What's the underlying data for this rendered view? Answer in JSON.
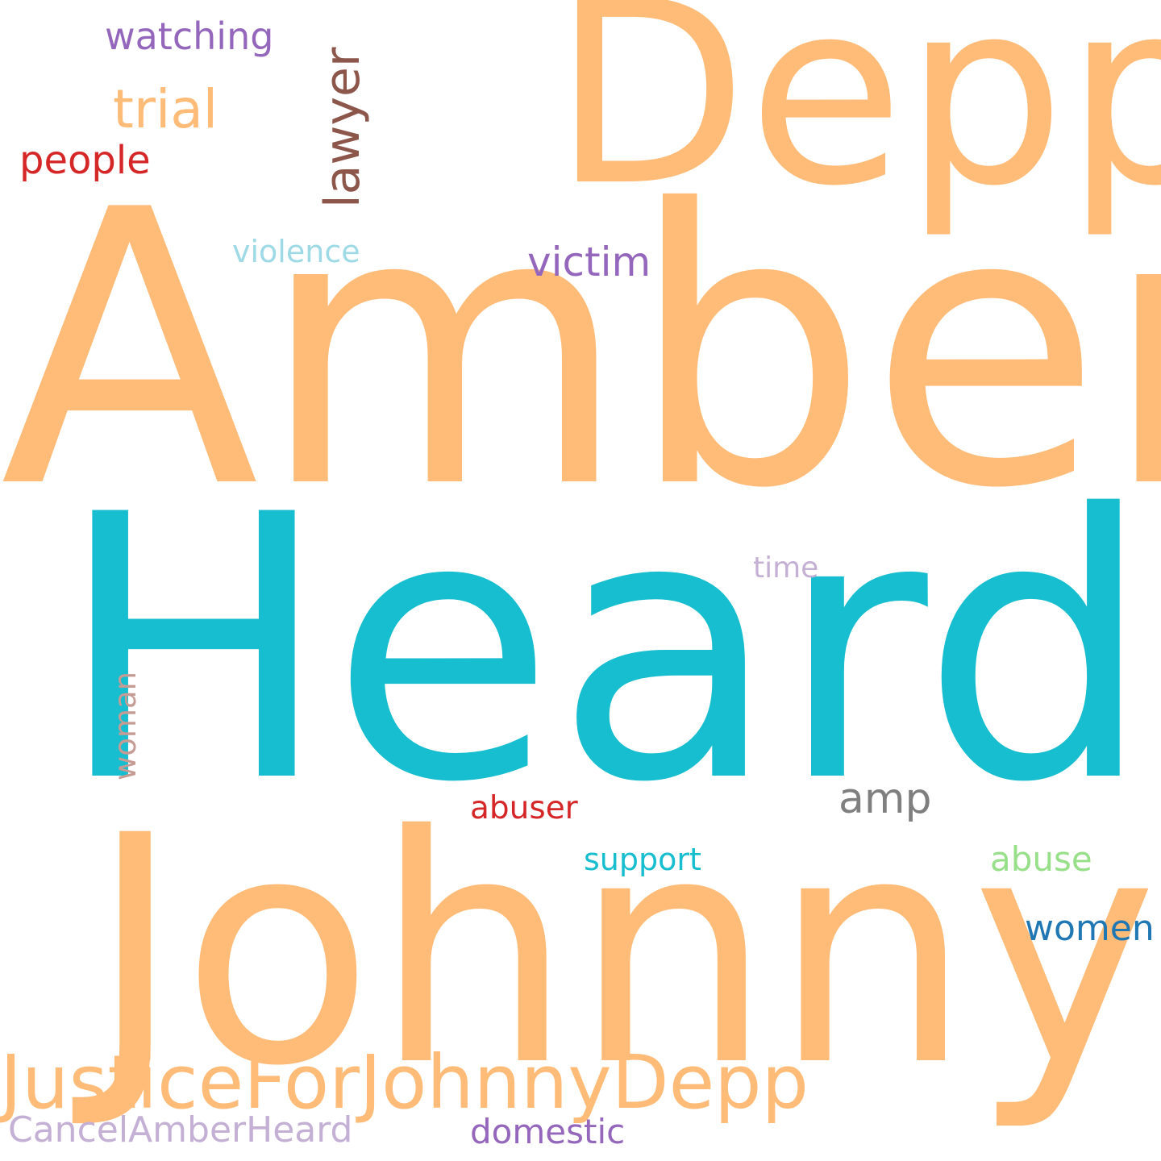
{
  "words": {
    "amber": {
      "text": "Amber",
      "color": "#ffbb78"
    },
    "heard": {
      "text": "Heard",
      "color": "#17becf"
    },
    "johnny": {
      "text": "Johnny",
      "color": "#ffbb78"
    },
    "depp": {
      "text": "Depp",
      "color": "#ffbb78"
    },
    "justice": {
      "text": "JusticeForJohnnyDepp",
      "color": "#ffbb78"
    },
    "cancel": {
      "text": "CancelAmberHeard",
      "color": "#c5b0d5"
    },
    "watching": {
      "text": "watching",
      "color": "#9467bd"
    },
    "trial": {
      "text": "trial",
      "color": "#ffbb78"
    },
    "people": {
      "text": "people",
      "color": "#d62728"
    },
    "lawyer": {
      "text": "lawyer",
      "color": "#8c564b"
    },
    "violence": {
      "text": "violence",
      "color": "#9edae5"
    },
    "victim": {
      "text": "victim",
      "color": "#9467bd"
    },
    "time": {
      "text": "time",
      "color": "#c5b0d5"
    },
    "woman": {
      "text": "woman",
      "color": "#c49c94"
    },
    "amp": {
      "text": "amp",
      "color": "#7f7f7f"
    },
    "abuser": {
      "text": "abuser",
      "color": "#d62728"
    },
    "support": {
      "text": "support",
      "color": "#17becf"
    },
    "abuse": {
      "text": "abuse",
      "color": "#98df8a"
    },
    "women": {
      "text": "women",
      "color": "#1f77b4"
    },
    "domestic": {
      "text": "domestic",
      "color": "#9467bd"
    }
  }
}
